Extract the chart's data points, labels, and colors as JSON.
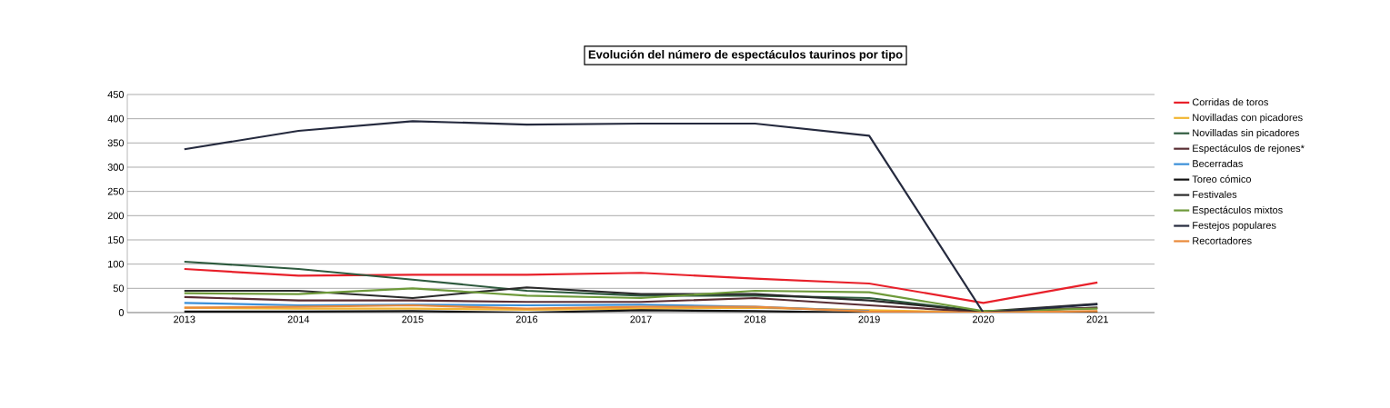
{
  "chart_data": {
    "type": "line",
    "title": "Evolución del número de espectáculos taurinos por tipo",
    "categories": [
      "2013",
      "2014",
      "2015",
      "2016",
      "2017",
      "2018",
      "2019",
      "2020",
      "2021"
    ],
    "ylim": [
      0,
      450
    ],
    "yticks": [
      0,
      50,
      100,
      150,
      200,
      250,
      300,
      350,
      400,
      450
    ],
    "grid": "y",
    "legend": "right",
    "marker": "none",
    "line_style": "solid",
    "series": [
      {
        "name": "Corridas de toros",
        "color": "#e8202a",
        "values": [
          90,
          76,
          78,
          78,
          82,
          70,
          60,
          20,
          62
        ]
      },
      {
        "name": "Novilladas con picadores",
        "color": "#f2b632",
        "values": [
          10,
          8,
          8,
          6,
          8,
          10,
          5,
          0,
          2
        ]
      },
      {
        "name": "Novilladas sin picadores",
        "color": "#2e5a3e",
        "values": [
          105,
          90,
          68,
          45,
          35,
          35,
          30,
          2,
          10
        ]
      },
      {
        "name": "Espectáculos de rejones*",
        "color": "#5a2e34",
        "values": [
          32,
          25,
          25,
          22,
          22,
          30,
          15,
          1,
          10
        ]
      },
      {
        "name": "Becerradas",
        "color": "#3a8fd8",
        "values": [
          20,
          15,
          16,
          15,
          16,
          12,
          3,
          null,
          null
        ]
      },
      {
        "name": "Toreo cómico",
        "color": "#111111",
        "values": [
          2,
          2,
          3,
          0,
          5,
          3,
          0,
          0,
          0
        ]
      },
      {
        "name": "Festivales",
        "color": "#2a2a2a",
        "values": [
          45,
          45,
          30,
          52,
          38,
          38,
          25,
          2,
          18
        ]
      },
      {
        "name": "Espectáculos mixtos",
        "color": "#6e9a3a",
        "values": [
          40,
          38,
          50,
          35,
          30,
          45,
          42,
          3,
          8
        ]
      },
      {
        "name": "Festejos populares",
        "color": "#252a3e",
        "values": [
          337,
          375,
          395,
          388,
          390,
          390,
          365,
          0,
          17
        ]
      },
      {
        "name": "Recortadores",
        "color": "#ea8a3a",
        "values": [
          10,
          12,
          15,
          8,
          12,
          12,
          2,
          0,
          3
        ]
      }
    ]
  }
}
